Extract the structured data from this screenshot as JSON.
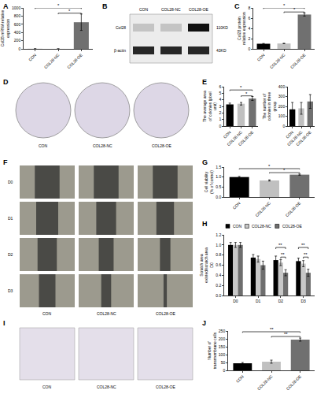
{
  "panel_labels": [
    "A",
    "B",
    "C",
    "D",
    "E",
    "F",
    "G",
    "H",
    "I",
    "J"
  ],
  "chart_data": [
    {
      "type": "bar",
      "ylabel": "Col28 mRNA relative expression",
      "categories": [
        "CON",
        "COL28-NC",
        "COL28-OE"
      ],
      "values": [
        1,
        0.8,
        650
      ],
      "errors": [
        0.3,
        0.2,
        200
      ],
      "colors": [
        "#000000",
        "#c0c0c0",
        "#707070"
      ],
      "ylim": [
        0,
        1000
      ],
      "yticks": [
        0,
        200,
        400,
        600,
        800,
        1000
      ],
      "grid": false,
      "significance": [
        {
          "from": "COL28-NC",
          "to": "COL28-OE",
          "y": 870,
          "text": "*"
        },
        {
          "from": "CON",
          "to": "COL28-OE",
          "y": 1000,
          "text": "*"
        }
      ]
    },
    {
      "type": "bar",
      "ylabel": "Col28 protein relative expression",
      "categories": [
        "CON",
        "COL28-NC",
        "COL28-OE"
      ],
      "values": [
        1,
        1.05,
        6.7
      ],
      "errors": [
        0.05,
        0.05,
        0.3
      ],
      "colors": [
        "#000000",
        "#c0c0c0",
        "#707070"
      ],
      "ylim": [
        0,
        8
      ],
      "yticks": [
        0,
        2,
        4,
        6,
        8
      ],
      "grid": false,
      "significance": [
        {
          "from": "COL28-NC",
          "to": "COL28-OE",
          "y": 7.2,
          "text": "*"
        },
        {
          "from": "CON",
          "to": "COL28-OE",
          "y": 8,
          "text": "*"
        }
      ]
    },
    {
      "type": "bar",
      "ylabel": "The average area of colonies (pixel unit)",
      "categories": [
        "CON",
        "COL28-NC",
        "COL28-OE"
      ],
      "values": [
        3.3,
        3.4,
        4.2
      ],
      "errors": [
        0.2,
        0.2,
        0.3
      ],
      "colors": [
        "#000000",
        "#c0c0c0",
        "#707070"
      ],
      "ylim": [
        0,
        6
      ],
      "yticks": [
        0,
        1,
        2,
        3,
        4,
        5,
        6
      ],
      "grid": false,
      "significance": [
        {
          "from": "COL28-NC",
          "to": "COL28-OE",
          "y": 4.6,
          "text": "*"
        },
        {
          "from": "CON",
          "to": "COL28-OE",
          "y": 5.5,
          "text": "*"
        }
      ]
    },
    {
      "type": "bar",
      "ylabel": "The number of colonies in three group",
      "categories": [
        "CON",
        "COL28-NC",
        "COL28-OE"
      ],
      "values": [
        170,
        180,
        250
      ],
      "errors": [
        70,
        60,
        70
      ],
      "colors": [
        "#000000",
        "#c0c0c0",
        "#707070"
      ],
      "ylim": [
        0,
        400
      ],
      "yticks": [
        0,
        100,
        200,
        300,
        400
      ],
      "grid": false
    },
    {
      "type": "bar",
      "ylabel": "Cell viability (% of control)",
      "categories": [
        "CON",
        "COL28-NC",
        "COL28-OE"
      ],
      "values": [
        1.0,
        0.83,
        1.12
      ],
      "errors": [
        0.03,
        0.03,
        0.03
      ],
      "colors": [
        "#000000",
        "#c0c0c0",
        "#707070"
      ],
      "ylim": [
        0,
        1.5
      ],
      "yticks": [
        {
          "value": 0,
          "label": "0.0"
        },
        0.5,
        {
          "value": 1,
          "label": "1.0"
        },
        1.5
      ],
      "grid": false,
      "significance": [
        {
          "from": "COL28-NC",
          "to": "COL28-OE",
          "y": 1.22,
          "text": "*"
        },
        {
          "from": "CON",
          "to": "COL28-OE",
          "y": 1.42,
          "text": "*"
        }
      ]
    },
    {
      "type": "bar",
      "ylabel": "Scratch area existed/scratch area D0",
      "categories": [
        "D0",
        "D1",
        "D2",
        "D3"
      ],
      "series": [
        {
          "name": "CON",
          "color": "#000000",
          "values": [
            1.0,
            0.75,
            0.7,
            0.68
          ],
          "errors": [
            0.05,
            0.06,
            0.08,
            0.06
          ]
        },
        {
          "name": "COL28-NC",
          "color": "#c8c8c8",
          "values": [
            1.0,
            0.72,
            0.65,
            0.63
          ],
          "errors": [
            0.05,
            0.06,
            0.06,
            0.06
          ]
        },
        {
          "name": "COL28-OE",
          "color": "#6e6e6e",
          "values": [
            1.0,
            0.6,
            0.45,
            0.45
          ],
          "errors": [
            0.05,
            0.08,
            0.06,
            0.07
          ]
        }
      ],
      "ylim": [
        0,
        1.2
      ],
      "yticks": [
        {
          "value": 0,
          "label": "0.0"
        },
        0.2,
        0.4,
        0.6,
        0.8,
        {
          "value": 1,
          "label": "1.0"
        },
        1.2
      ],
      "grid": false,
      "legend": "top",
      "significance": [
        {
          "category": "D2",
          "from": "COL28-NC",
          "to": "COL28-OE",
          "y": 0.76,
          "text": "**"
        },
        {
          "category": "D2",
          "from": "CON",
          "to": "COL28-OE",
          "y": 0.95,
          "text": "**"
        },
        {
          "category": "D3",
          "from": "COL28-NC",
          "to": "COL28-OE",
          "y": 0.76,
          "text": "**"
        },
        {
          "category": "D3",
          "from": "CON",
          "to": "COL28-OE",
          "y": 0.95,
          "text": "**"
        }
      ]
    },
    {
      "type": "bar",
      "ylabel": "Number of transmembrane cells",
      "categories": [
        "CON",
        "COL28-NC",
        "COL28-OE"
      ],
      "values": [
        45,
        55,
        195
      ],
      "errors": [
        5,
        10,
        10
      ],
      "colors": [
        "#000000",
        "#c0c0c0",
        "#707070"
      ],
      "ylim": [
        0,
        250
      ],
      "yticks": [
        0,
        50,
        100,
        150,
        200,
        250
      ],
      "grid": false,
      "significance": [
        {
          "from": "COL28-NC",
          "to": "COL28-OE",
          "y": 215,
          "text": "**"
        },
        {
          "from": "CON",
          "to": "COL28-OE",
          "y": 245,
          "text": "**"
        }
      ]
    }
  ],
  "images": {
    "western_blot": {
      "lanes": [
        "CON",
        "COL28-NC",
        "COL28-OE"
      ],
      "bands": [
        {
          "protein": "Col28",
          "size": "110KD"
        },
        {
          "protein": "β-actin",
          "size": "43KD"
        }
      ]
    },
    "colony_plates": {
      "labels": [
        "CON",
        "COL28-NC",
        "COL28-OE"
      ]
    },
    "scratch": {
      "rows": [
        "D0",
        "D1",
        "D2",
        "D3"
      ],
      "columns": [
        "CON",
        "COL28-NC",
        "COL28-OE"
      ]
    },
    "transwell": {
      "labels": [
        "CON",
        "COL28-NC",
        "COL28-OE"
      ]
    }
  }
}
